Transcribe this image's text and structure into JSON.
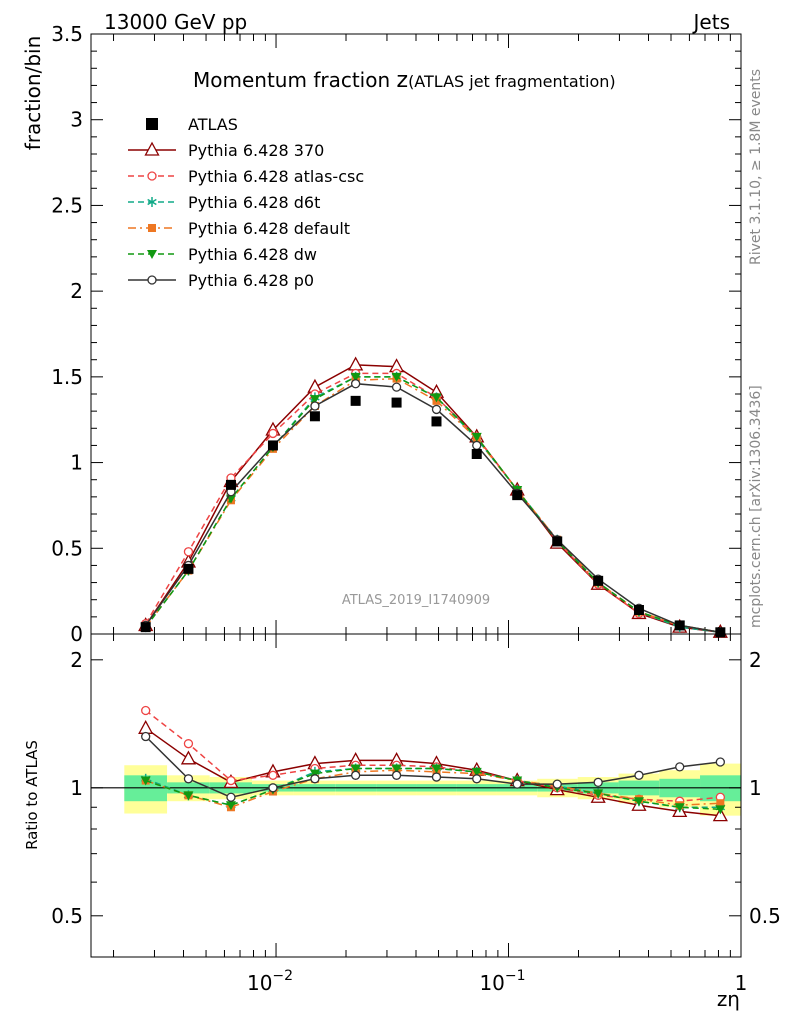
{
  "header": {
    "left": "13000 GeV pp",
    "right": "Jets"
  },
  "side": {
    "rivet": "Rivet 3.1.10, ≥ 1.8M events",
    "mcplots": "mcplots.cern.ch [arXiv:1306.3436]"
  },
  "title": {
    "main": "Momentum fraction ",
    "var": "z",
    "sub": "(ATLAS jet fragmentation)"
  },
  "watermark": "ATLAS_2019_I1740909",
  "chart_data": {
    "type": "line",
    "x": [
      0.00275,
      0.0042,
      0.0064,
      0.0097,
      0.0147,
      0.022,
      0.033,
      0.049,
      0.073,
      0.109,
      0.162,
      0.243,
      0.364,
      0.545,
      0.815
    ],
    "top": {
      "ylabel": "fraction/bin",
      "ylim": [
        0,
        3.5
      ],
      "yticks": [
        "0",
        "0.5",
        "1",
        "1.5",
        "2",
        "2.5",
        "3",
        "3.5"
      ],
      "data": {
        "name": "ATLAS",
        "values": [
          0.04,
          0.38,
          0.87,
          1.1,
          1.27,
          1.36,
          1.35,
          1.24,
          1.05,
          0.81,
          0.54,
          0.31,
          0.14,
          0.05,
          0.01
        ]
      },
      "series": [
        {
          "name": "Pythia 6.428 370",
          "color": "#8b0000",
          "style": "solid",
          "marker": "triangle-open",
          "values": [
            0.05,
            0.42,
            0.89,
            1.19,
            1.44,
            1.57,
            1.56,
            1.41,
            1.15,
            0.84,
            0.53,
            0.29,
            0.12,
            0.04,
            0.01
          ]
        },
        {
          "name": "Pythia 6.428 atlas-csc",
          "color": "#ee4444",
          "style": "dashed",
          "marker": "circle-open",
          "values": [
            0.06,
            0.48,
            0.91,
            1.17,
            1.4,
            1.52,
            1.52,
            1.38,
            1.15,
            0.84,
            0.54,
            0.29,
            0.12,
            0.05,
            0.01
          ]
        },
        {
          "name": "Pythia 6.428 d6t",
          "color": "#11aa88",
          "style": "dashed",
          "marker": "asterisk",
          "values": [
            0.04,
            0.37,
            0.79,
            1.09,
            1.38,
            1.5,
            1.5,
            1.38,
            1.14,
            0.84,
            0.55,
            0.3,
            0.13,
            0.04,
            0.01
          ]
        },
        {
          "name": "Pythia 6.428 default",
          "color": "#ee7722",
          "style": "dashdot",
          "marker": "square",
          "values": [
            0.04,
            0.37,
            0.78,
            1.08,
            1.33,
            1.48,
            1.49,
            1.36,
            1.14,
            0.84,
            0.55,
            0.3,
            0.13,
            0.05,
            0.01
          ]
        },
        {
          "name": "Pythia 6.428 dw",
          "color": "#119911",
          "style": "dashed",
          "marker": "triangle-down",
          "values": [
            0.04,
            0.37,
            0.79,
            1.09,
            1.37,
            1.5,
            1.5,
            1.38,
            1.15,
            0.84,
            0.54,
            0.3,
            0.13,
            0.05,
            0.01
          ]
        },
        {
          "name": "Pythia 6.428 p0",
          "color": "#333333",
          "style": "solid",
          "marker": "circle-open",
          "values": [
            0.05,
            0.4,
            0.83,
            1.1,
            1.33,
            1.46,
            1.44,
            1.31,
            1.1,
            0.82,
            0.55,
            0.32,
            0.15,
            0.05,
            0.01
          ]
        }
      ]
    },
    "ratio": {
      "ylabel": "Ratio to ATLAS",
      "ylim": [
        0.4,
        2.3
      ],
      "yticks": [
        "0.5",
        "1",
        "2"
      ],
      "band_inner": [
        0.07,
        0.03,
        0.03,
        0.02,
        0.02,
        0.02,
        0.02,
        0.02,
        0.02,
        0.02,
        0.02,
        0.03,
        0.04,
        0.05,
        0.07
      ],
      "band_outer": [
        0.13,
        0.07,
        0.06,
        0.04,
        0.04,
        0.04,
        0.04,
        0.04,
        0.04,
        0.04,
        0.05,
        0.06,
        0.08,
        0.1,
        0.14
      ],
      "series": [
        {
          "name": "Pythia 6.428 370",
          "values": [
            1.38,
            1.17,
            1.03,
            1.09,
            1.14,
            1.16,
            1.16,
            1.14,
            1.1,
            1.04,
            0.99,
            0.95,
            0.91,
            0.88,
            0.86
          ]
        },
        {
          "name": "Pythia 6.428 atlas-csc",
          "values": [
            1.52,
            1.27,
            1.04,
            1.07,
            1.11,
            1.13,
            1.13,
            1.12,
            1.09,
            1.04,
            1.0,
            0.96,
            0.94,
            0.93,
            0.95
          ]
        },
        {
          "name": "Pythia 6.428 d6t",
          "values": [
            1.05,
            0.96,
            0.91,
            0.99,
            1.09,
            1.11,
            1.11,
            1.11,
            1.09,
            1.04,
            1.01,
            0.97,
            0.93,
            0.9,
            0.9
          ]
        },
        {
          "name": "Pythia 6.428 default",
          "values": [
            1.04,
            0.96,
            0.9,
            0.98,
            1.05,
            1.09,
            1.1,
            1.09,
            1.08,
            1.04,
            1.01,
            0.97,
            0.94,
            0.91,
            0.92
          ]
        },
        {
          "name": "Pythia 6.428 dw",
          "values": [
            1.04,
            0.96,
            0.91,
            0.99,
            1.08,
            1.11,
            1.11,
            1.11,
            1.09,
            1.04,
            1.0,
            0.97,
            0.93,
            0.9,
            0.89
          ]
        },
        {
          "name": "Pythia 6.428 p0",
          "values": [
            1.32,
            1.05,
            0.95,
            1.0,
            1.05,
            1.07,
            1.07,
            1.06,
            1.05,
            1.02,
            1.02,
            1.03,
            1.07,
            1.12,
            1.15
          ]
        }
      ]
    },
    "xaxis": {
      "label": "zη",
      "scale": "log",
      "xlim": [
        0.0016,
        1.0
      ],
      "ticks": [
        {
          "base": "10",
          "exp": "−2",
          "value": 0.01
        },
        {
          "base": "10",
          "exp": "−1",
          "value": 0.1
        },
        {
          "base": "1",
          "exp": "",
          "value": 1
        }
      ]
    },
    "legend": {
      "placement": "top-left"
    }
  }
}
